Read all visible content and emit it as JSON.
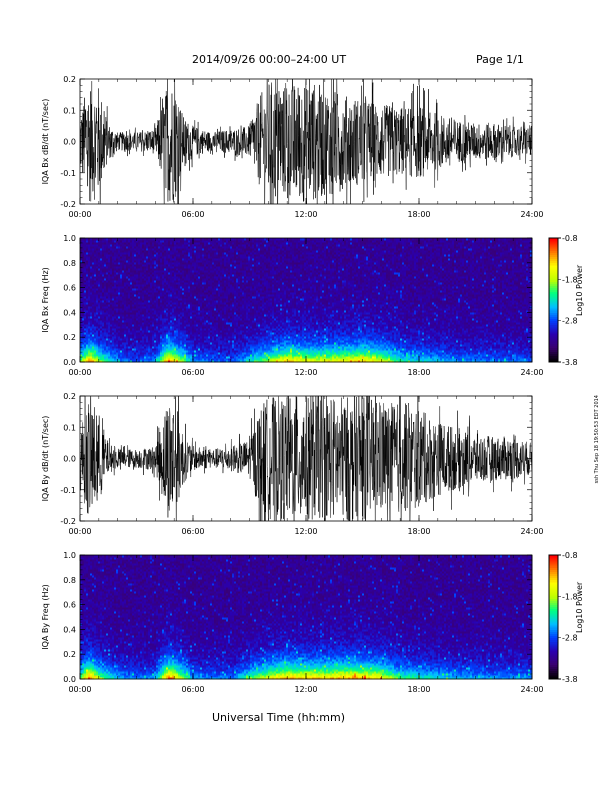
{
  "header": {
    "date_title": "2014/09/26  00:00–24:00 UT",
    "page": "Page 1/1"
  },
  "footer": {
    "xlabel": "Universal Time (hh:mm)",
    "side_stamp": "ssh Thu Sep 18 19:50:53 EDT 2014"
  },
  "colors": {
    "trace": "#000000",
    "colormap": [
      "#000000",
      "#3a0070",
      "#2a00b0",
      "#0040ff",
      "#00c0ff",
      "#00ff80",
      "#c0ff00",
      "#ffff00",
      "#ff8000",
      "#ff0000"
    ]
  },
  "chart_data": [
    {
      "type": "line",
      "panel": "bx-timeseries",
      "ylabel": "IQA Bx dB/dt (nT/sec)",
      "ylim": [
        -0.2,
        0.2
      ],
      "yticks": [
        "0.2",
        "0.1",
        "0.0",
        "-0.1",
        "-0.2"
      ],
      "xlim": [
        0,
        24
      ],
      "xticks": [
        "00:00",
        "06:00",
        "12:00",
        "18:00",
        "24:00"
      ],
      "series": [
        {
          "x": [
            0,
            0.5,
            1.0,
            1.5,
            2.0,
            3.0,
            4.0,
            4.7,
            5.0,
            5.5,
            6.0,
            7.0,
            8.0,
            9.0,
            9.5,
            10.0,
            11.0,
            12.0,
            13.0,
            14.0,
            15.0,
            16.0,
            17.0,
            18.0,
            19.0,
            20.0,
            21.0,
            22.0,
            23.0,
            24.0
          ],
          "amplitude": [
            0.1,
            0.2,
            0.18,
            0.06,
            0.03,
            0.03,
            0.04,
            0.2,
            0.2,
            0.08,
            0.05,
            0.03,
            0.04,
            0.05,
            0.14,
            0.2,
            0.18,
            0.2,
            0.18,
            0.15,
            0.14,
            0.12,
            0.11,
            0.12,
            0.09,
            0.07,
            0.06,
            0.06,
            0.05,
            0.05
          ]
        }
      ]
    },
    {
      "type": "heatmap",
      "panel": "bx-spectrogram",
      "ylabel": "IQA Bx Freq (Hz)",
      "ylim": [
        0.0,
        1.0
      ],
      "yticks": [
        "1.0",
        "0.8",
        "0.6",
        "0.4",
        "0.2",
        "0.0"
      ],
      "xlim": [
        0,
        24
      ],
      "xticks": [
        "00:00",
        "06:00",
        "12:00",
        "18:00",
        "24:00"
      ],
      "colorbar": {
        "label": "Log10 Power",
        "ticks": [
          "-0.8",
          "-1.8",
          "-2.8",
          "-3.8"
        ],
        "range": [
          -3.8,
          -0.8
        ]
      },
      "activity": {
        "x": [
          0,
          0.5,
          1.0,
          2.0,
          3.0,
          4.0,
          4.7,
          5.0,
          6.0,
          8.0,
          9.0,
          10.0,
          11.0,
          12.0,
          13.0,
          14.0,
          15.0,
          16.0,
          17.0,
          18.0,
          20.0,
          22.0,
          24.0
        ],
        "level": [
          0.5,
          0.9,
          0.6,
          0.3,
          0.2,
          0.3,
          0.9,
          0.8,
          0.3,
          0.2,
          0.4,
          0.6,
          0.8,
          0.7,
          0.7,
          0.75,
          0.8,
          0.7,
          0.45,
          0.4,
          0.3,
          0.25,
          0.25
        ]
      }
    },
    {
      "type": "line",
      "panel": "by-timeseries",
      "ylabel": "IQA By dB/dt (nT/sec)",
      "ylim": [
        -0.2,
        0.2
      ],
      "yticks": [
        "0.2",
        "0.1",
        "0.0",
        "-0.1",
        "-0.2"
      ],
      "xlim": [
        0,
        24
      ],
      "xticks": [
        "00:00",
        "06:00",
        "12:00",
        "18:00",
        "24:00"
      ],
      "series": [
        {
          "x": [
            0,
            0.5,
            1.0,
            1.5,
            2.0,
            3.0,
            4.0,
            4.7,
            5.0,
            5.5,
            6.0,
            7.0,
            8.0,
            9.0,
            9.5,
            10.0,
            11.0,
            12.0,
            13.0,
            14.0,
            15.0,
            16.0,
            17.0,
            18.0,
            19.0,
            20.0,
            21.0,
            22.0,
            23.0,
            24.0
          ],
          "amplitude": [
            0.1,
            0.2,
            0.15,
            0.05,
            0.03,
            0.03,
            0.04,
            0.2,
            0.2,
            0.08,
            0.04,
            0.03,
            0.04,
            0.06,
            0.16,
            0.2,
            0.2,
            0.2,
            0.2,
            0.2,
            0.2,
            0.18,
            0.18,
            0.16,
            0.12,
            0.1,
            0.08,
            0.07,
            0.07,
            0.05
          ]
        }
      ]
    },
    {
      "type": "heatmap",
      "panel": "by-spectrogram",
      "ylabel": "IQA By Freq (Hz)",
      "ylim": [
        0.0,
        1.0
      ],
      "yticks": [
        "1.0",
        "0.8",
        "0.6",
        "0.4",
        "0.2",
        "0.0"
      ],
      "xlim": [
        0,
        24
      ],
      "xticks": [
        "00:00",
        "06:00",
        "12:00",
        "18:00",
        "24:00"
      ],
      "colorbar": {
        "label": "Log10 Power",
        "ticks": [
          "-0.8",
          "-1.8",
          "-2.8",
          "-3.8"
        ],
        "range": [
          -3.8,
          -0.8
        ]
      },
      "activity": {
        "x": [
          0,
          0.5,
          1.0,
          2.0,
          3.0,
          4.0,
          4.7,
          5.0,
          6.0,
          8.0,
          9.0,
          10.0,
          11.0,
          12.0,
          13.0,
          14.0,
          15.0,
          16.0,
          17.0,
          18.0,
          20.0,
          22.0,
          24.0
        ],
        "level": [
          0.55,
          0.95,
          0.6,
          0.35,
          0.25,
          0.3,
          0.95,
          0.85,
          0.3,
          0.25,
          0.5,
          0.7,
          0.85,
          0.8,
          0.8,
          0.85,
          0.85,
          0.75,
          0.5,
          0.45,
          0.35,
          0.3,
          0.3
        ]
      }
    }
  ]
}
